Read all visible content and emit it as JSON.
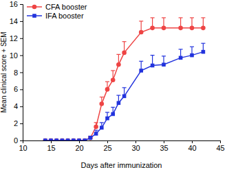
{
  "chart_data": {
    "type": "line",
    "x_label": "Days after immunization",
    "y_label": "Mean clinical score + SEM",
    "x": [
      14,
      15,
      16,
      17,
      18,
      19,
      20,
      21,
      22,
      23,
      24,
      25,
      26,
      27,
      28,
      31,
      33,
      35,
      38,
      40,
      42
    ],
    "series": [
      {
        "name": "CFA booster",
        "color": "#ee4444",
        "marker": "circle",
        "values": [
          0,
          0,
          0,
          0,
          0,
          0,
          0,
          0,
          0.3,
          1.6,
          4.3,
          6.0,
          7.1,
          8.9,
          10.3,
          12.7,
          13.2,
          13.2,
          13.2,
          13.2,
          13.2
        ],
        "errors": [
          0,
          0,
          0,
          0,
          0,
          0,
          0,
          0,
          0.2,
          0.5,
          0.8,
          0.9,
          1.1,
          1.2,
          1.3,
          1.3,
          1.2,
          1.2,
          1.2,
          1.2,
          1.2
        ]
      },
      {
        "name": "IFA booster",
        "color": "#2233dd",
        "marker": "square",
        "values": [
          0,
          0,
          0,
          0,
          0,
          0,
          0,
          0,
          0.3,
          0.8,
          1.5,
          2.6,
          3.1,
          4.4,
          5.2,
          8.2,
          8.8,
          8.9,
          9.7,
          10.0,
          10.4
        ],
        "errors": [
          0,
          0,
          0,
          0,
          0,
          0,
          0,
          0,
          0.2,
          0.4,
          0.6,
          0.7,
          0.8,
          0.9,
          1.0,
          1.1,
          1.2,
          1.0,
          1.0,
          1.0,
          1.0
        ]
      }
    ],
    "xlim": [
      10,
      45
    ],
    "xticks": [
      10,
      15,
      20,
      25,
      30,
      35,
      40,
      45
    ],
    "ylim": [
      0,
      16
    ],
    "yticks": [
      0,
      2,
      4,
      6,
      8,
      10,
      12,
      14,
      16
    ],
    "legend": "top-left"
  }
}
